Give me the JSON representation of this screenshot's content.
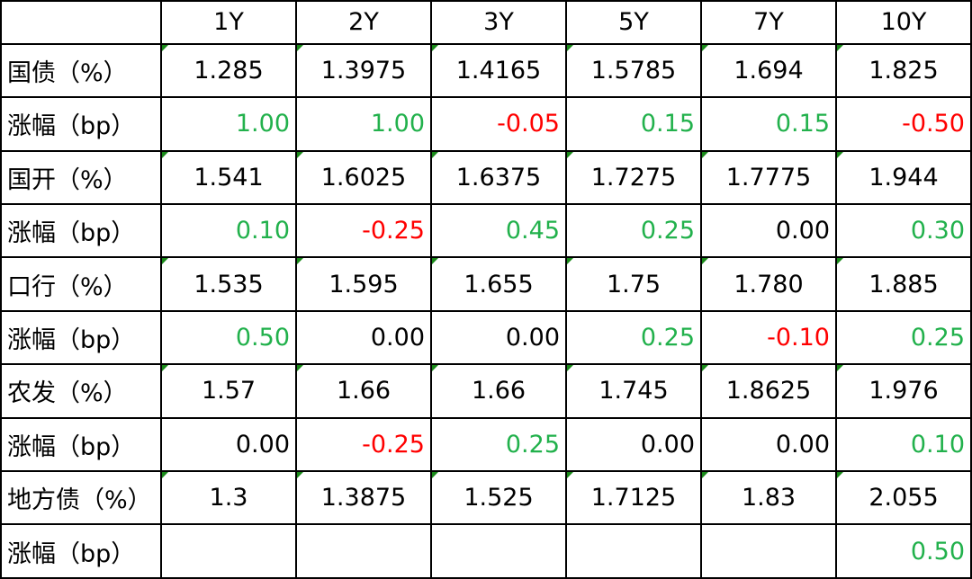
{
  "table": {
    "columns": [
      "1Y",
      "2Y",
      "3Y",
      "5Y",
      "7Y",
      "10Y"
    ],
    "rows": [
      {
        "label": "国债（%）",
        "values": [
          "1.285",
          "1.3975",
          "1.4165",
          "1.5785",
          "1.694",
          "1.825"
        ]
      },
      {
        "label": "涨幅（bp）",
        "values": [
          "1.00",
          "1.00",
          "-0.05",
          "0.15",
          "0.15",
          "-0.50"
        ]
      },
      {
        "label": "国开（%）",
        "values": [
          "1.541",
          "1.6025",
          "1.6375",
          "1.7275",
          "1.7775",
          "1.944"
        ]
      },
      {
        "label": "涨幅（bp）",
        "values": [
          "0.10",
          "-0.25",
          "0.45",
          "0.25",
          "0.00",
          "0.30"
        ]
      },
      {
        "label": "口行（%）",
        "values": [
          "1.535",
          "1.595",
          "1.655",
          "1.75",
          "1.780",
          "1.885"
        ]
      },
      {
        "label": "涨幅（bp）",
        "values": [
          "0.50",
          "0.00",
          "0.00",
          "0.25",
          "-0.10",
          "0.25"
        ]
      },
      {
        "label": "农发（%）",
        "values": [
          "1.57",
          "1.66",
          "1.66",
          "1.745",
          "1.8625",
          "1.976"
        ]
      },
      {
        "label": "涨幅（bp）",
        "values": [
          "0.00",
          "-0.25",
          "0.25",
          "0.00",
          "0.00",
          "0.10"
        ]
      },
      {
        "label": "地方债（%）",
        "values": [
          "1.3",
          "1.3875",
          "1.525",
          "1.7125",
          "1.83",
          "2.055"
        ]
      },
      {
        "label": "涨幅（bp）",
        "values": [
          null,
          null,
          null,
          null,
          null,
          "0.50"
        ]
      }
    ],
    "colors": {
      "up": "#22b14c",
      "down": "#ff0000"
    }
  }
}
